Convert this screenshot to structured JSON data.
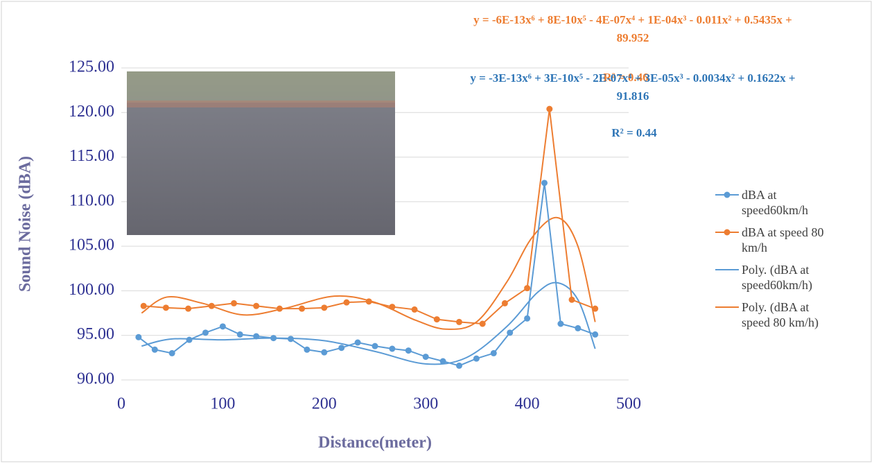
{
  "chart_data": {
    "type": "line",
    "y_label": "Sound Noise (dBA)",
    "x_label": "Distance(meter)",
    "xlim": [
      0,
      500
    ],
    "xticks": [
      0,
      100,
      200,
      300,
      400,
      500
    ],
    "ylim": [
      90,
      125
    ],
    "yticks": [
      {
        "value": 90,
        "label": "90.00"
      },
      {
        "value": 95,
        "label": "95.00"
      },
      {
        "value": 100,
        "label": "100.00"
      },
      {
        "value": 105,
        "label": "105.00"
      },
      {
        "value": 110,
        "label": "110.00"
      },
      {
        "value": 115,
        "label": "115.00"
      },
      {
        "value": 120,
        "label": "120.00"
      },
      {
        "value": 125,
        "label": "125.00"
      }
    ],
    "grid": true,
    "legend": "right",
    "series": [
      {
        "name": "dBA at speed60km/h",
        "color": "#5b9bd5",
        "markers": true,
        "x": [
          17,
          33,
          50,
          67,
          83,
          100,
          117,
          133,
          150,
          167,
          183,
          200,
          217,
          233,
          250,
          267,
          283,
          300,
          317,
          333,
          350,
          367,
          383,
          400,
          417,
          433,
          450,
          467
        ],
        "values": [
          94.8,
          93.4,
          93.0,
          94.5,
          95.3,
          96.0,
          95.1,
          94.9,
          94.7,
          94.6,
          93.4,
          93.1,
          93.6,
          94.2,
          93.8,
          93.5,
          93.3,
          92.6,
          92.1,
          91.6,
          92.4,
          93.0,
          95.3,
          96.9,
          112.1,
          96.3,
          95.8,
          95.1
        ]
      },
      {
        "name": "dBA at speed 80 km/h",
        "color": "#ed7d31",
        "markers": true,
        "x": [
          22,
          44,
          66,
          89,
          111,
          133,
          156,
          178,
          200,
          222,
          244,
          267,
          289,
          311,
          333,
          356,
          378,
          400,
          422,
          444,
          467
        ],
        "values": [
          98.3,
          98.1,
          98.0,
          98.3,
          98.6,
          98.3,
          98.0,
          98.0,
          98.1,
          98.7,
          98.8,
          98.2,
          97.9,
          96.8,
          96.5,
          96.3,
          98.6,
          100.3,
          120.4,
          99.0,
          98.0
        ]
      },
      {
        "name": "Poly. (dBA at speed60km/h)",
        "color": "#5b9bd5",
        "markers": false,
        "x": [
          20,
          50,
          100,
          150,
          200,
          250,
          300,
          340,
          380,
          410,
          430,
          450,
          467
        ],
        "values": [
          93.8,
          94.6,
          94.5,
          94.7,
          94.4,
          93.2,
          91.8,
          92.5,
          96.0,
          99.8,
          100.9,
          99.0,
          93.5
        ]
      },
      {
        "name": "Poly. (dBA at speed 80 km/h)",
        "color": "#ed7d31",
        "markers": false,
        "x": [
          20,
          45,
          80,
          120,
          160,
          210,
          250,
          290,
          320,
          350,
          380,
          405,
          430,
          450,
          467
        ],
        "values": [
          97.5,
          99.3,
          98.6,
          97.3,
          98.0,
          99.4,
          98.7,
          96.7,
          95.7,
          96.5,
          101.0,
          106.0,
          108.2,
          105.0,
          96.5
        ]
      }
    ],
    "annotations": [
      {
        "color": "#ed7d31",
        "lines": [
          "y = -6E-13x⁶ + 8E-10x⁵ - 4E-07x⁴ + 1E-04x³ - 0.011x² + 0.5435x +",
          "89.952"
        ]
      },
      {
        "color": "#ed7d31",
        "lines": [
          "R² = 0.46"
        ]
      },
      {
        "color": "#2e75b6",
        "lines": [
          "y = -3E-13x⁶ + 3E-10x⁵ - 2E-07x⁴ + 3E-05x³ - 0.0034x² + 0.1622x +",
          "91.816"
        ]
      },
      {
        "color": "#2e75b6",
        "lines": [
          "R² = 0.44"
        ]
      }
    ]
  }
}
